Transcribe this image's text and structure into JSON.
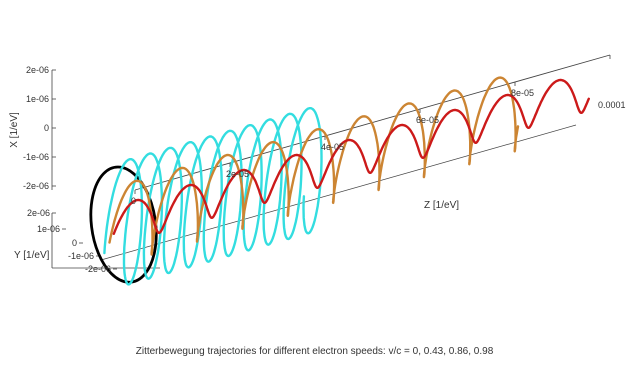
{
  "chart_data": {
    "type": "line",
    "subtype": "3d-parametric-helix",
    "title": "",
    "caption": "Zitterbewegung trajectories for different electron speeds: v/c = 0, 0.43, 0.86, 0.98",
    "axes": {
      "x": {
        "label": "X [1/eV]",
        "ticks": [
          "2e-06",
          "1e-06",
          "0",
          "-1e-06",
          "-2e-06"
        ],
        "range": [
          -2e-06,
          2e-06
        ]
      },
      "y": {
        "label": "Y [1/eV]",
        "ticks": [
          "2e-06",
          "1e-06",
          "0",
          "-1e-06",
          "-2e-06"
        ],
        "range": [
          -2e-06,
          2e-06
        ]
      },
      "z": {
        "label": "Z [1/eV]",
        "ticks": [
          "0",
          "2e-05",
          "4e-05",
          "6e-05",
          "8e-05",
          "0.0001"
        ],
        "range": [
          0,
          0.0001
        ]
      }
    },
    "grid": false,
    "legend": "none",
    "series": [
      {
        "v_over_c": 0,
        "color": "#000000",
        "radius": 1.6e-06,
        "z_end": 0,
        "turns": 1
      },
      {
        "v_over_c": 0.43,
        "color": "#33dde0",
        "radius": 1.6e-06,
        "z_end": 4.2e-05,
        "turns": 10
      },
      {
        "v_over_c": 0.86,
        "color": "#cc8533",
        "radius": 1e-06,
        "z_end": 8.6e-05,
        "turns": 9
      },
      {
        "v_over_c": 0.98,
        "color": "#cc1a1a",
        "radius": 5e-07,
        "z_end": 0.0001,
        "turns": 9
      }
    ]
  }
}
